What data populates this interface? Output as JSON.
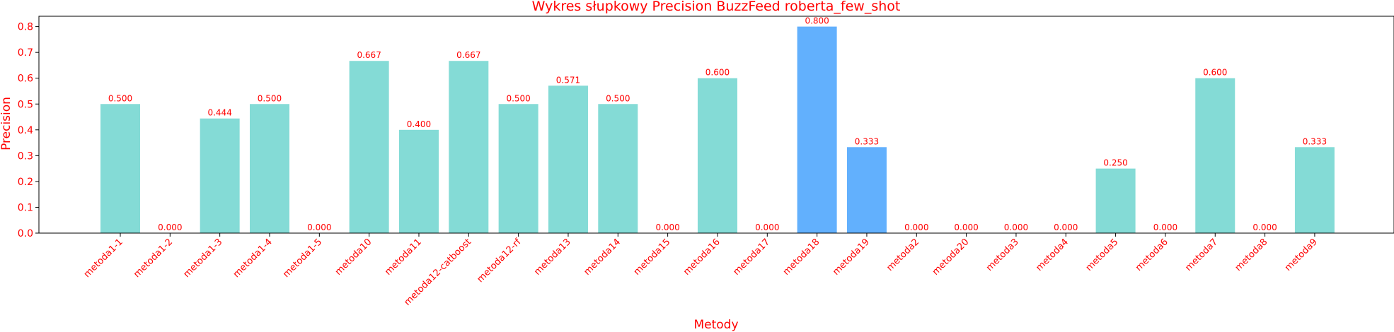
{
  "chart_data": {
    "type": "bar",
    "title": "Wykres słupkowy Precision BuzzFeed roberta_few_shot",
    "xlabel": "Metody",
    "ylabel": "Precision",
    "ylim": [
      0,
      0.84
    ],
    "yticks": [
      "0.0",
      "0.1",
      "0.2",
      "0.3",
      "0.4",
      "0.5",
      "0.6",
      "0.7",
      "0.8"
    ],
    "grid": false,
    "categories": [
      "metoda1-1",
      "metoda1-2",
      "metoda1-3",
      "metoda1-4",
      "metoda1-5",
      "metoda10",
      "metoda11",
      "metoda12-catboost",
      "metoda12-rf",
      "metoda13",
      "metoda14",
      "metoda15",
      "metoda16",
      "metoda17",
      "metoda18",
      "metoda19",
      "metoda2",
      "metoda20",
      "metoda3",
      "metoda4",
      "metoda5",
      "metoda6",
      "metoda7",
      "metoda8",
      "metoda9"
    ],
    "values": [
      0.5,
      0.0,
      0.444,
      0.5,
      0.0,
      0.667,
      0.4,
      0.667,
      0.5,
      0.571,
      0.5,
      0.0,
      0.6,
      0.0,
      0.8,
      0.333,
      0.0,
      0.0,
      0.0,
      0.0,
      0.25,
      0.0,
      0.6,
      0.0,
      0.333
    ],
    "value_labels": [
      "0.500",
      "0.000",
      "0.444",
      "0.500",
      "0.000",
      "0.667",
      "0.400",
      "0.667",
      "0.500",
      "0.571",
      "0.500",
      "0.000",
      "0.600",
      "0.000",
      "0.800",
      "0.333",
      "0.000",
      "0.000",
      "0.000",
      "0.000",
      "0.250",
      "0.000",
      "0.600",
      "0.000",
      "0.333"
    ],
    "highlighted": [
      "metoda18",
      "metoda19"
    ],
    "colors": {
      "bar": "#84dbd6",
      "highlight": "#62b0fd",
      "text": "#ff0000",
      "axis": "#000000"
    }
  }
}
